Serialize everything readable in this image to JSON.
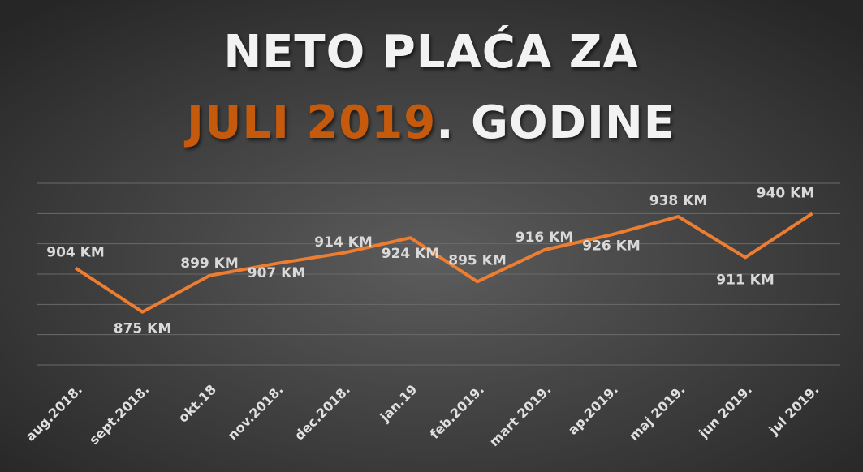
{
  "chart_data": {
    "type": "line",
    "title": {
      "line1": "NETO PLAĆA ZA",
      "highlight": "JULI 2019",
      "rest": ". GODINE"
    },
    "categories": [
      "aug.2018.",
      "sept.2018.",
      "okt.18",
      "nov.2018.",
      "dec.2018.",
      "jan.19",
      "feb.2019.",
      "mart 2019.",
      "ap.2019.",
      "maj 2019.",
      "jun 2019.",
      "jul 2019."
    ],
    "values": [
      904,
      875,
      899,
      907,
      914,
      924,
      895,
      916,
      926,
      938,
      911,
      940
    ],
    "value_labels": [
      "904 KM",
      "875 KM",
      "899 KM",
      "907 KM",
      "914 KM",
      "924 KM",
      "895 KM",
      "916 KM",
      "926 KM",
      "938 KM",
      "911 KM",
      "940 KM"
    ],
    "color": "#ed7d31",
    "highlight_color": "#c55a11",
    "ylim": [
      840,
      960
    ],
    "yticks": [
      840,
      860,
      880,
      900,
      920,
      940,
      960
    ],
    "grid": true
  }
}
